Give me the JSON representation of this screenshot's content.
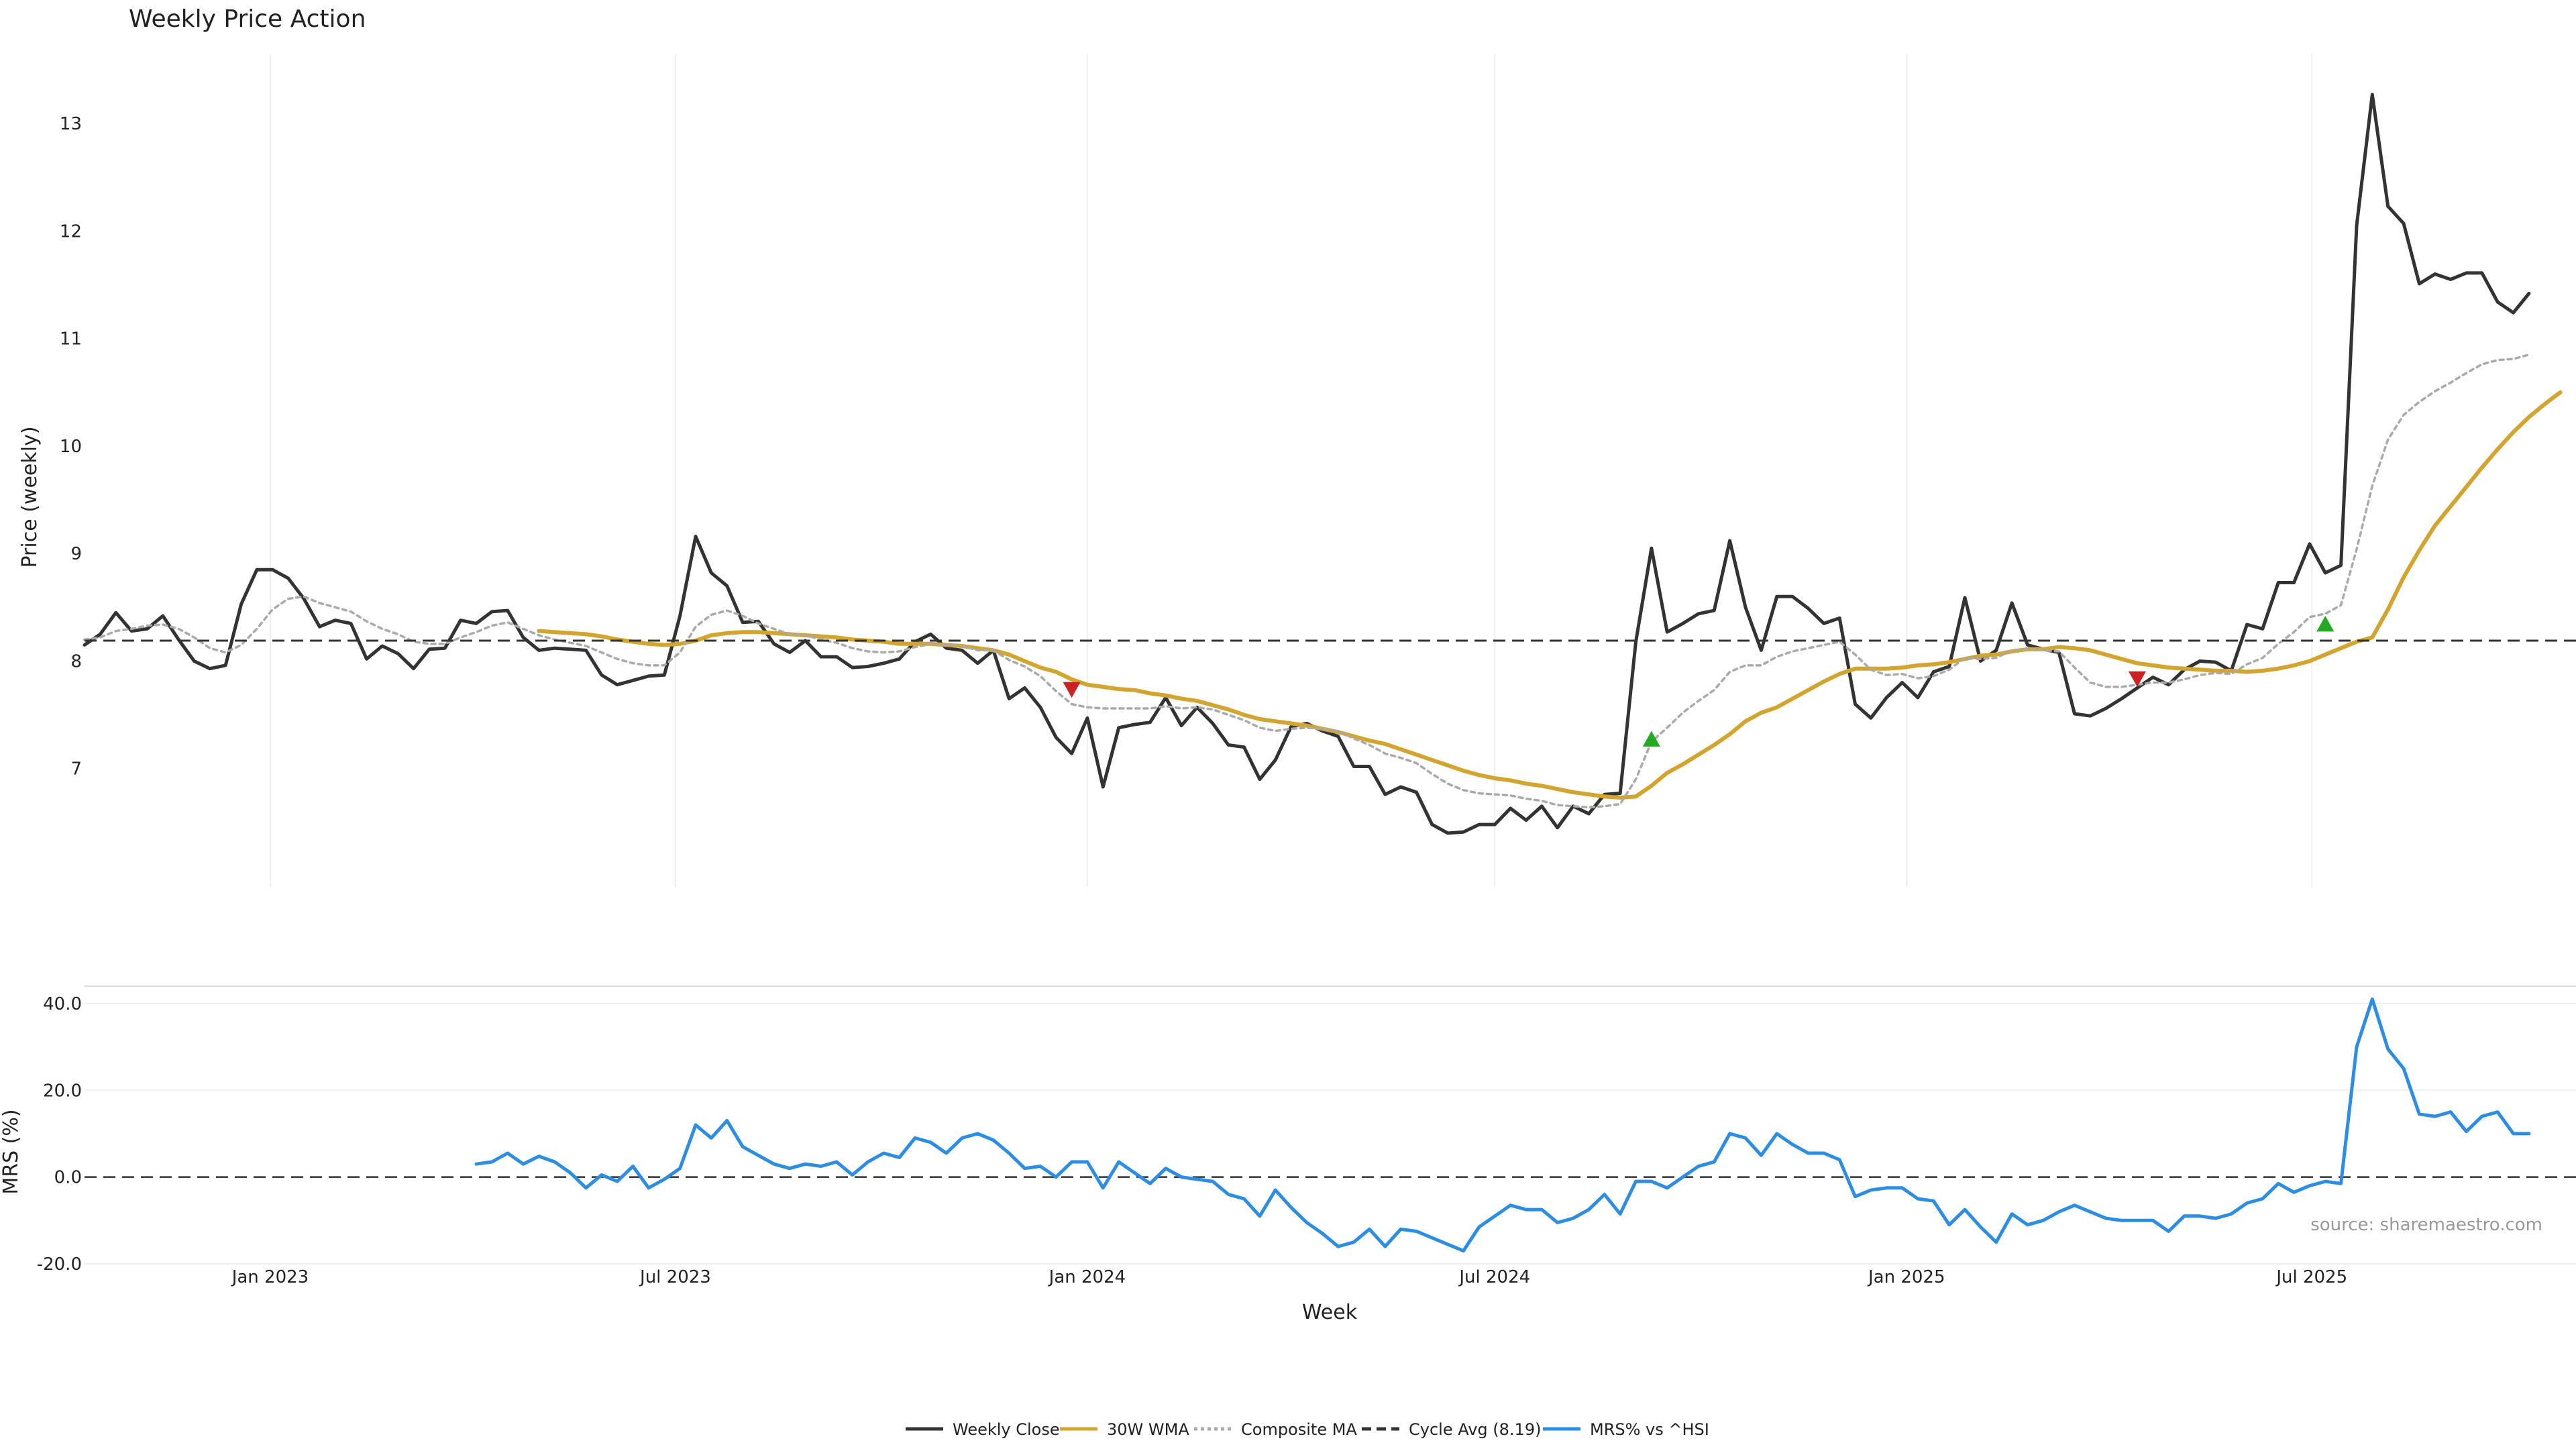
{
  "chart_data": [
    {
      "type": "line",
      "title": "Weekly Price Action",
      "ylabel": "Price (weekly)",
      "xlabel": "",
      "xlim": [
        "2022-10-10",
        "2025-10-27"
      ],
      "ylim": [
        5.9,
        13.65
      ],
      "yticks": [
        7,
        8,
        9,
        10,
        11,
        12,
        13
      ],
      "xticks": [
        {
          "date": "2023-01-01",
          "label": "Jan 2023"
        },
        {
          "date": "2023-07-01",
          "label": "Jul 2023"
        },
        {
          "date": "2024-01-01",
          "label": "Jan 2024"
        },
        {
          "date": "2024-07-01",
          "label": "Jul 2024"
        },
        {
          "date": "2025-01-01",
          "label": "Jan 2025"
        },
        {
          "date": "2025-07-01",
          "label": "Jul 2025"
        }
      ],
      "grid": "vertical",
      "x_start": "2022-10-10",
      "x_step_days": 7,
      "series": [
        {
          "name": "Weekly Close",
          "color": "#333333",
          "style": "solid",
          "values": [
            8.15,
            8.25,
            8.45,
            8.28,
            8.3,
            8.42,
            8.2,
            8.0,
            7.93,
            7.96,
            8.53,
            8.85,
            8.85,
            8.77,
            8.58,
            8.32,
            8.38,
            8.35,
            8.02,
            8.14,
            8.07,
            7.93,
            8.11,
            8.12,
            8.38,
            8.35,
            8.46,
            8.47,
            8.22,
            8.1,
            8.12,
            8.11,
            8.1,
            7.87,
            7.78,
            7.82,
            7.86,
            7.87,
            8.42,
            9.16,
            8.82,
            8.7,
            8.36,
            8.37,
            8.16,
            8.08,
            8.19,
            8.04,
            8.04,
            7.94,
            7.95,
            7.98,
            8.02,
            8.18,
            8.25,
            8.12,
            8.1,
            7.98,
            8.1,
            7.65,
            7.75,
            7.57,
            7.29,
            7.14,
            7.47,
            6.83,
            7.38,
            7.41,
            7.43,
            7.66,
            7.4,
            7.57,
            7.42,
            7.22,
            7.2,
            6.9,
            7.08,
            7.39,
            7.42,
            7.35,
            7.3,
            7.02,
            7.02,
            6.76,
            6.83,
            6.78,
            6.48,
            6.4,
            6.41,
            6.48,
            6.48,
            6.63,
            6.52,
            6.65,
            6.45,
            6.65,
            6.58,
            6.76,
            6.77,
            8.18,
            9.05,
            8.27,
            8.35,
            8.44,
            8.47,
            9.12,
            8.5,
            8.1,
            8.6,
            8.6,
            8.49,
            8.35,
            8.4,
            7.6,
            7.47,
            7.66,
            7.8,
            7.66,
            7.9,
            7.95,
            8.59,
            8.0,
            8.1,
            8.54,
            8.15,
            8.11,
            8.08,
            7.51,
            7.49,
            7.56,
            7.65,
            7.75,
            7.85,
            7.78,
            7.92,
            8.0,
            7.99,
            7.91,
            8.34,
            8.3,
            8.73,
            8.73,
            9.09,
            8.82,
            8.89,
            12.05,
            13.27,
            12.23,
            12.07,
            11.51,
            11.6,
            11.55,
            11.61,
            11.61,
            11.34,
            11.24,
            11.42
          ]
        },
        {
          "name": "30W WMA",
          "color": "#d4a52e",
          "style": "solid",
          "start_index": 29,
          "values": [
            8.28,
            8.27,
            8.26,
            8.25,
            8.23,
            8.2,
            8.18,
            8.16,
            8.15,
            8.16,
            8.19,
            8.24,
            8.26,
            8.27,
            8.27,
            8.26,
            8.25,
            8.24,
            8.23,
            8.22,
            8.2,
            8.19,
            8.18,
            8.16,
            8.16,
            8.16,
            8.15,
            8.14,
            8.12,
            8.1,
            8.06,
            8.0,
            7.94,
            7.9,
            7.83,
            7.78,
            7.76,
            7.74,
            7.73,
            7.7,
            7.68,
            7.65,
            7.63,
            7.59,
            7.55,
            7.5,
            7.46,
            7.44,
            7.42,
            7.4,
            7.37,
            7.34,
            7.3,
            7.26,
            7.23,
            7.18,
            7.13,
            7.08,
            7.03,
            6.98,
            6.94,
            6.91,
            6.89,
            6.86,
            6.84,
            6.81,
            6.78,
            6.76,
            6.74,
            6.73,
            6.74,
            6.84,
            6.96,
            7.04,
            7.13,
            7.22,
            7.32,
            7.44,
            7.52,
            7.57,
            7.65,
            7.73,
            7.81,
            7.88,
            7.93,
            7.93,
            7.93,
            7.94,
            7.96,
            7.97,
            7.99,
            8.02,
            8.05,
            8.06,
            8.09,
            8.11,
            8.11,
            8.13,
            8.12,
            8.1,
            8.06,
            8.02,
            7.98,
            7.96,
            7.94,
            7.93,
            7.92,
            7.91,
            7.91,
            7.9,
            7.91,
            7.93,
            7.96,
            8.0,
            8.06,
            8.12,
            8.18,
            8.22,
            8.48,
            8.78,
            9.03,
            9.26,
            9.44,
            9.62,
            9.8,
            9.97,
            10.13,
            10.27,
            10.39,
            10.5
          ]
        },
        {
          "name": "Composite MA",
          "color": "#aaaaaa",
          "style": "dotted",
          "values": [
            8.2,
            8.22,
            8.28,
            8.3,
            8.33,
            8.34,
            8.3,
            8.22,
            8.12,
            8.08,
            8.15,
            8.3,
            8.48,
            8.58,
            8.6,
            8.54,
            8.5,
            8.46,
            8.37,
            8.3,
            8.25,
            8.18,
            8.16,
            8.16,
            8.22,
            8.27,
            8.33,
            8.36,
            8.3,
            8.24,
            8.2,
            8.17,
            8.14,
            8.08,
            8.02,
            7.98,
            7.96,
            7.96,
            8.08,
            8.32,
            8.43,
            8.47,
            8.42,
            8.35,
            8.3,
            8.25,
            8.24,
            8.2,
            8.17,
            8.12,
            8.09,
            8.08,
            8.09,
            8.13,
            8.16,
            8.15,
            8.14,
            8.1,
            8.1,
            8.01,
            7.95,
            7.86,
            7.72,
            7.6,
            7.57,
            7.56,
            7.56,
            7.56,
            7.56,
            7.58,
            7.56,
            7.57,
            7.55,
            7.5,
            7.45,
            7.38,
            7.35,
            7.37,
            7.38,
            7.37,
            7.35,
            7.28,
            7.22,
            7.14,
            7.1,
            7.05,
            6.95,
            6.86,
            6.8,
            6.77,
            6.76,
            6.75,
            6.72,
            6.7,
            6.66,
            6.65,
            6.64,
            6.65,
            6.67,
            6.9,
            7.25,
            7.38,
            7.52,
            7.63,
            7.73,
            7.9,
            7.96,
            7.96,
            8.04,
            8.09,
            8.12,
            8.15,
            8.18,
            8.06,
            7.92,
            7.87,
            7.88,
            7.84,
            7.86,
            7.92,
            8.03,
            8.02,
            8.03,
            8.1,
            8.11,
            8.1,
            8.09,
            7.94,
            7.8,
            7.76,
            7.76,
            7.78,
            7.8,
            7.8,
            7.83,
            7.87,
            7.89,
            7.88,
            7.97,
            8.03,
            8.16,
            8.27,
            8.41,
            8.44,
            8.52,
            9.04,
            9.63,
            10.06,
            10.29,
            10.41,
            10.51,
            10.59,
            10.68,
            10.76,
            10.8,
            10.81,
            10.85
          ]
        },
        {
          "name": "Cycle Avg (8.19)",
          "color": "#333333",
          "style": "dashed",
          "constant": 8.19
        }
      ],
      "markers": [
        {
          "type": "sell",
          "color": "#cc2222",
          "symbol": "triangle-down",
          "index": 63,
          "y": 7.74
        },
        {
          "type": "buy",
          "color": "#22aa22",
          "symbol": "triangle-up",
          "index": 100,
          "y": 7.27
        },
        {
          "type": "sell",
          "color": "#cc2222",
          "symbol": "triangle-down",
          "index": 131,
          "y": 7.84
        },
        {
          "type": "buy",
          "color": "#22aa22",
          "symbol": "triangle-up",
          "index": 143,
          "y": 8.34
        }
      ]
    },
    {
      "type": "line",
      "title": "",
      "xlabel": "Week",
      "ylabel": "MRS (%)",
      "ylim": [
        -20,
        44
      ],
      "yticks": [
        "-20.0",
        "0.0",
        "20.0",
        "40.0"
      ],
      "ytick_values": [
        -20,
        0,
        20,
        40
      ],
      "zero_line": true,
      "grid": "horizontal",
      "series": [
        {
          "name": "MRS% vs ^HSI",
          "color": "#2b8de3",
          "style": "solid",
          "start_index": 25,
          "values": [
            3,
            3.5,
            5.5,
            3,
            4.8,
            3.5,
            1,
            -2.5,
            0.5,
            -1,
            2.5,
            -2.5,
            -0.5,
            2,
            12,
            9,
            13,
            7,
            5,
            3,
            2,
            3,
            2.5,
            3.5,
            0.5,
            3.5,
            5.5,
            4.5,
            9,
            8,
            5.5,
            9,
            10,
            8.5,
            5.5,
            2,
            2.5,
            0,
            3.5,
            3.5,
            -2.5,
            3.5,
            1,
            -1.5,
            2,
            0,
            -0.5,
            -1,
            -4,
            -5,
            -9,
            -3,
            -7,
            -10.5,
            -13,
            -16,
            -15,
            -12,
            -16,
            -12,
            -12.5,
            -14,
            -15.5,
            -17,
            -11.5,
            -9,
            -6.5,
            -7.5,
            -7.5,
            -10.5,
            -9.5,
            -7.5,
            -4,
            -8.5,
            -1,
            -1,
            -2.5,
            0,
            2.5,
            3.5,
            10,
            9,
            5,
            10,
            7.5,
            5.5,
            5.5,
            4,
            -4.5,
            -3,
            -2.5,
            -2.5,
            -5,
            -5.5,
            -11,
            -7.5,
            -11.5,
            -15,
            -8.5,
            -11,
            -10,
            -8,
            -6.5,
            -8,
            -9.5,
            -10,
            -10,
            -10,
            -12.5,
            -9,
            -9,
            -9.5,
            -8.5,
            -6,
            -5,
            -1.5,
            -3.5,
            -2,
            -1,
            -1.5,
            30,
            41,
            29.5,
            25,
            14.5,
            14,
            15,
            10.5,
            14,
            15,
            10,
            10
          ]
        }
      ]
    }
  ],
  "source_note": "source: sharemaestro.com",
  "legend": [
    {
      "label": "Weekly Close",
      "color": "#333333",
      "style": "solid"
    },
    {
      "label": "30W WMA",
      "color": "#d4a52e",
      "style": "solid"
    },
    {
      "label": "Composite MA",
      "color": "#aaaaaa",
      "style": "dotted"
    },
    {
      "label": "Cycle Avg (8.19)",
      "color": "#333333",
      "style": "dashed"
    },
    {
      "label": "MRS% vs ^HSI",
      "color": "#2b8de3",
      "style": "solid"
    }
  ],
  "legend_position": "bottom-center"
}
